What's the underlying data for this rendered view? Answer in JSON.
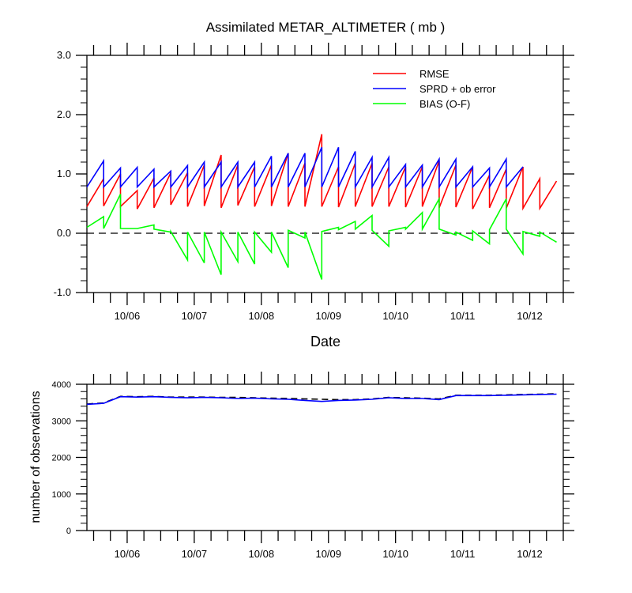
{
  "chart_data": [
    {
      "type": "line",
      "title": "Assimilated METAR_ALTIMETER ( mb )",
      "xlabel": "Date",
      "ylabel": "",
      "x_unit": "days since 10/05 00Z (axis ticks labelled by date)",
      "xlim": [
        0.4,
        7.5
      ],
      "ylim": [
        -1.0,
        3.0
      ],
      "yticks": [
        -1.0,
        0.0,
        1.0,
        2.0,
        3.0
      ],
      "ytick_labels": [
        "-1.0",
        "0.0",
        "1.0",
        "2.0",
        "3.0"
      ],
      "xticks": [
        1,
        2,
        3,
        4,
        5,
        6,
        7
      ],
      "xtick_labels": [
        "10/06",
        "10/07",
        "10/08",
        "10/09",
        "10/10",
        "10/11",
        "10/12"
      ],
      "grid": false,
      "zero_line": {
        "y": 0,
        "style": "dashed",
        "color": "#000000"
      },
      "legend": {
        "position": "top-right"
      },
      "series": [
        {
          "name": "RMSE",
          "color": "#ff0000",
          "points": [
            [
              0.4,
              0.45
            ],
            [
              0.65,
              0.92
            ],
            [
              0.65,
              0.46
            ],
            [
              0.9,
              1.0
            ],
            [
              0.9,
              0.45
            ],
            [
              1.15,
              0.72
            ],
            [
              1.15,
              0.41
            ],
            [
              1.4,
              0.93
            ],
            [
              1.4,
              0.43
            ],
            [
              1.65,
              1.02
            ],
            [
              1.65,
              0.48
            ],
            [
              1.9,
              1.02
            ],
            [
              1.9,
              0.45
            ],
            [
              2.15,
              1.15
            ],
            [
              2.15,
              0.46
            ],
            [
              2.4,
              1.32
            ],
            [
              2.4,
              0.43
            ],
            [
              2.65,
              1.15
            ],
            [
              2.65,
              0.47
            ],
            [
              2.9,
              1.12
            ],
            [
              2.9,
              0.45
            ],
            [
              3.15,
              1.15
            ],
            [
              3.15,
              0.46
            ],
            [
              3.4,
              1.35
            ],
            [
              3.4,
              0.45
            ],
            [
              3.65,
              1.18
            ],
            [
              3.65,
              0.45
            ],
            [
              3.9,
              1.67
            ],
            [
              3.9,
              0.45
            ],
            [
              4.15,
              1.12
            ],
            [
              4.15,
              0.44
            ],
            [
              4.4,
              1.18
            ],
            [
              4.4,
              0.45
            ],
            [
              4.65,
              1.18
            ],
            [
              4.65,
              0.45
            ],
            [
              4.9,
              1.12
            ],
            [
              4.9,
              0.45
            ],
            [
              5.15,
              1.12
            ],
            [
              5.15,
              0.44
            ],
            [
              5.4,
              1.12
            ],
            [
              5.4,
              0.45
            ],
            [
              5.65,
              1.22
            ],
            [
              5.65,
              0.43
            ],
            [
              5.9,
              1.15
            ],
            [
              5.9,
              0.44
            ],
            [
              6.15,
              1.12
            ],
            [
              6.15,
              0.41
            ],
            [
              6.4,
              0.98
            ],
            [
              6.4,
              0.43
            ],
            [
              6.65,
              1.08
            ],
            [
              6.65,
              0.42
            ],
            [
              6.9,
              1.12
            ],
            [
              6.9,
              0.42
            ],
            [
              7.15,
              0.92
            ],
            [
              7.15,
              0.42
            ],
            [
              7.4,
              0.88
            ]
          ]
        },
        {
          "name": "SPRD + ob error",
          "color": "#0000ff",
          "points": [
            [
              0.4,
              0.78
            ],
            [
              0.65,
              1.22
            ],
            [
              0.65,
              0.78
            ],
            [
              0.9,
              1.1
            ],
            [
              0.9,
              0.78
            ],
            [
              1.15,
              1.11
            ],
            [
              1.15,
              0.78
            ],
            [
              1.4,
              1.08
            ],
            [
              1.4,
              0.78
            ],
            [
              1.65,
              1.05
            ],
            [
              1.65,
              0.78
            ],
            [
              1.9,
              1.14
            ],
            [
              1.9,
              0.78
            ],
            [
              2.15,
              1.2
            ],
            [
              2.15,
              0.78
            ],
            [
              2.4,
              1.2
            ],
            [
              2.4,
              0.78
            ],
            [
              2.65,
              1.2
            ],
            [
              2.65,
              0.78
            ],
            [
              2.9,
              1.2
            ],
            [
              2.9,
              0.78
            ],
            [
              3.15,
              1.3
            ],
            [
              3.15,
              0.78
            ],
            [
              3.4,
              1.35
            ],
            [
              3.4,
              0.78
            ],
            [
              3.65,
              1.35
            ],
            [
              3.65,
              0.78
            ],
            [
              3.9,
              1.45
            ],
            [
              3.9,
              0.78
            ],
            [
              4.15,
              1.45
            ],
            [
              4.15,
              0.78
            ],
            [
              4.4,
              1.38
            ],
            [
              4.4,
              0.78
            ],
            [
              4.65,
              1.28
            ],
            [
              4.65,
              0.78
            ],
            [
              4.9,
              1.28
            ],
            [
              4.9,
              0.78
            ],
            [
              5.15,
              1.16
            ],
            [
              5.15,
              0.78
            ],
            [
              5.4,
              1.15
            ],
            [
              5.4,
              0.78
            ],
            [
              5.65,
              1.25
            ],
            [
              5.65,
              0.78
            ],
            [
              5.9,
              1.25
            ],
            [
              5.9,
              0.78
            ],
            [
              6.15,
              1.12
            ],
            [
              6.15,
              0.78
            ],
            [
              6.4,
              1.1
            ],
            [
              6.4,
              0.78
            ],
            [
              6.65,
              1.25
            ],
            [
              6.65,
              0.78
            ],
            [
              6.9,
              1.12
            ]
          ]
        },
        {
          "name": "BIAS (O-F)",
          "color": "#00ff00",
          "points": [
            [
              0.4,
              0.1
            ],
            [
              0.65,
              0.28
            ],
            [
              0.65,
              0.08
            ],
            [
              0.9,
              0.66
            ],
            [
              0.9,
              0.08
            ],
            [
              1.15,
              0.08
            ],
            [
              1.15,
              0.08
            ],
            [
              1.4,
              0.14
            ],
            [
              1.4,
              0.07
            ],
            [
              1.65,
              0.02
            ],
            [
              1.65,
              0.03
            ],
            [
              1.9,
              -0.45
            ],
            [
              1.9,
              0.02
            ],
            [
              2.15,
              -0.5
            ],
            [
              2.15,
              0.02
            ],
            [
              2.4,
              -0.7
            ],
            [
              2.4,
              0.02
            ],
            [
              2.65,
              -0.48
            ],
            [
              2.65,
              0.02
            ],
            [
              2.9,
              -0.52
            ],
            [
              2.9,
              0.02
            ],
            [
              3.15,
              -0.32
            ],
            [
              3.15,
              0.02
            ],
            [
              3.4,
              -0.58
            ],
            [
              3.4,
              0.05
            ],
            [
              3.65,
              -0.08
            ],
            [
              3.65,
              0.02
            ],
            [
              3.9,
              -0.78
            ],
            [
              3.9,
              0.03
            ],
            [
              4.15,
              0.1
            ],
            [
              4.15,
              0.06
            ],
            [
              4.4,
              0.2
            ],
            [
              4.4,
              0.07
            ],
            [
              4.65,
              0.3
            ],
            [
              4.65,
              0.05
            ],
            [
              4.9,
              -0.22
            ],
            [
              4.9,
              0.04
            ],
            [
              5.15,
              0.1
            ],
            [
              5.15,
              0.07
            ],
            [
              5.4,
              0.35
            ],
            [
              5.4,
              0.07
            ],
            [
              5.65,
              0.58
            ],
            [
              5.65,
              0.07
            ],
            [
              5.9,
              -0.03
            ],
            [
              5.9,
              0.02
            ],
            [
              6.15,
              -0.12
            ],
            [
              6.15,
              0.04
            ],
            [
              6.4,
              -0.18
            ],
            [
              6.4,
              0.06
            ],
            [
              6.65,
              0.58
            ],
            [
              6.65,
              0.07
            ],
            [
              6.9,
              -0.35
            ],
            [
              6.9,
              0.03
            ],
            [
              7.15,
              -0.05
            ],
            [
              7.15,
              0.02
            ],
            [
              7.4,
              -0.15
            ]
          ]
        }
      ]
    },
    {
      "type": "line",
      "title": "",
      "xlabel": "",
      "ylabel": "number of observations",
      "x_unit": "days since 10/05 00Z (axis ticks labelled by date)",
      "xlim": [
        0.4,
        7.5
      ],
      "ylim": [
        0,
        4000
      ],
      "yticks": [
        0,
        1000,
        2000,
        3000,
        4000
      ],
      "ytick_labels": [
        "0",
        "1000",
        "2000",
        "3000",
        "4000"
      ],
      "xticks": [
        1,
        2,
        3,
        4,
        5,
        6,
        7
      ],
      "xtick_labels": [
        "10/06",
        "10/07",
        "10/08",
        "10/09",
        "10/10",
        "10/11",
        "10/12"
      ],
      "grid": false,
      "series": [
        {
          "name": "",
          "color": "#000000",
          "style": "dashed",
          "points": [
            [
              0.4,
              3460
            ],
            [
              0.65,
              3490
            ],
            [
              0.9,
              3670
            ],
            [
              1.15,
              3660
            ],
            [
              1.4,
              3670
            ],
            [
              1.65,
              3650
            ],
            [
              1.9,
              3650
            ],
            [
              2.15,
              3650
            ],
            [
              2.4,
              3640
            ],
            [
              2.65,
              3640
            ],
            [
              2.9,
              3630
            ],
            [
              3.15,
              3620
            ],
            [
              3.4,
              3610
            ],
            [
              3.65,
              3600
            ],
            [
              3.9,
              3590
            ],
            [
              4.15,
              3580
            ],
            [
              4.4,
              3580
            ],
            [
              4.65,
              3600
            ],
            [
              4.9,
              3640
            ],
            [
              5.15,
              3630
            ],
            [
              5.4,
              3620
            ],
            [
              5.65,
              3600
            ],
            [
              5.9,
              3700
            ],
            [
              6.15,
              3700
            ],
            [
              6.4,
              3700
            ],
            [
              6.65,
              3710
            ],
            [
              6.9,
              3720
            ],
            [
              7.15,
              3730
            ],
            [
              7.4,
              3740
            ]
          ]
        },
        {
          "name": "",
          "color": "#0000ff",
          "style": "solid",
          "points": [
            [
              0.4,
              3450
            ],
            [
              0.65,
              3480
            ],
            [
              0.9,
              3660
            ],
            [
              1.15,
              3650
            ],
            [
              1.4,
              3660
            ],
            [
              1.65,
              3640
            ],
            [
              1.9,
              3630
            ],
            [
              2.15,
              3640
            ],
            [
              2.4,
              3630
            ],
            [
              2.65,
              3610
            ],
            [
              2.9,
              3620
            ],
            [
              3.15,
              3600
            ],
            [
              3.4,
              3590
            ],
            [
              3.65,
              3560
            ],
            [
              3.9,
              3530
            ],
            [
              4.15,
              3560
            ],
            [
              4.4,
              3570
            ],
            [
              4.65,
              3590
            ],
            [
              4.9,
              3630
            ],
            [
              5.15,
              3610
            ],
            [
              5.4,
              3610
            ],
            [
              5.65,
              3580
            ],
            [
              5.9,
              3690
            ],
            [
              6.15,
              3690
            ],
            [
              6.4,
              3690
            ],
            [
              6.65,
              3700
            ],
            [
              6.9,
              3710
            ],
            [
              7.15,
              3720
            ],
            [
              7.4,
              3730
            ]
          ]
        }
      ]
    }
  ]
}
